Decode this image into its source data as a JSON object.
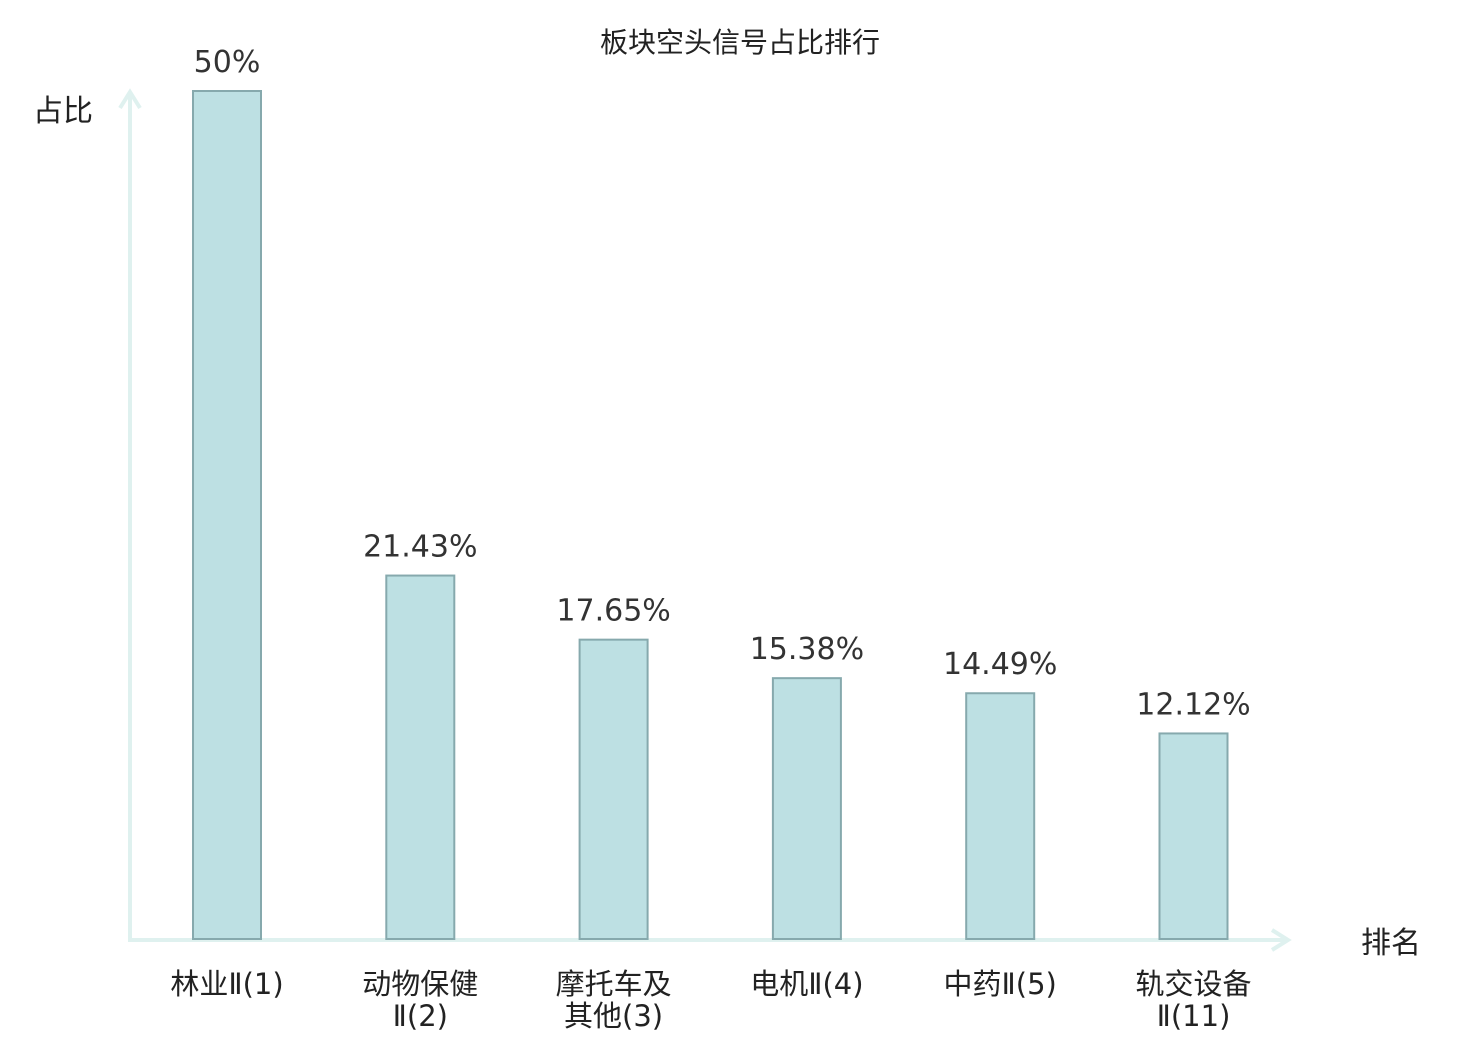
{
  "chart_data": {
    "type": "bar",
    "title": "板块空头信号占比排行",
    "ylabel": "占比",
    "xlabel": "排名",
    "ylim": [
      0,
      50
    ],
    "grid": false,
    "categories": [
      {
        "line1": "林业Ⅱ(1)",
        "line2": "",
        "highlight": false
      },
      {
        "line1": "动物保健",
        "line2": "Ⅱ(2)",
        "highlight": false
      },
      {
        "line1": "摩托车及",
        "line2": "其他(3)",
        "highlight": false
      },
      {
        "line1": "电机Ⅱ(4)",
        "line2": "",
        "highlight": false
      },
      {
        "line1": "中药Ⅱ(5)",
        "line2": "",
        "highlight": false
      },
      {
        "line1": "轨交设备",
        "line2": "Ⅱ(11)",
        "highlight": true
      }
    ],
    "values": [
      50,
      21.43,
      17.65,
      15.38,
      14.49,
      12.12
    ],
    "value_labels": [
      "50%",
      "21.43%",
      "17.65%",
      "15.38%",
      "14.49%",
      "12.12%"
    ],
    "colors": {
      "bar_fill": "#bde0e3",
      "bar_stroke": "#86a9ad",
      "axis": "#dff1ef",
      "highlight_text": "#e8101c"
    }
  }
}
